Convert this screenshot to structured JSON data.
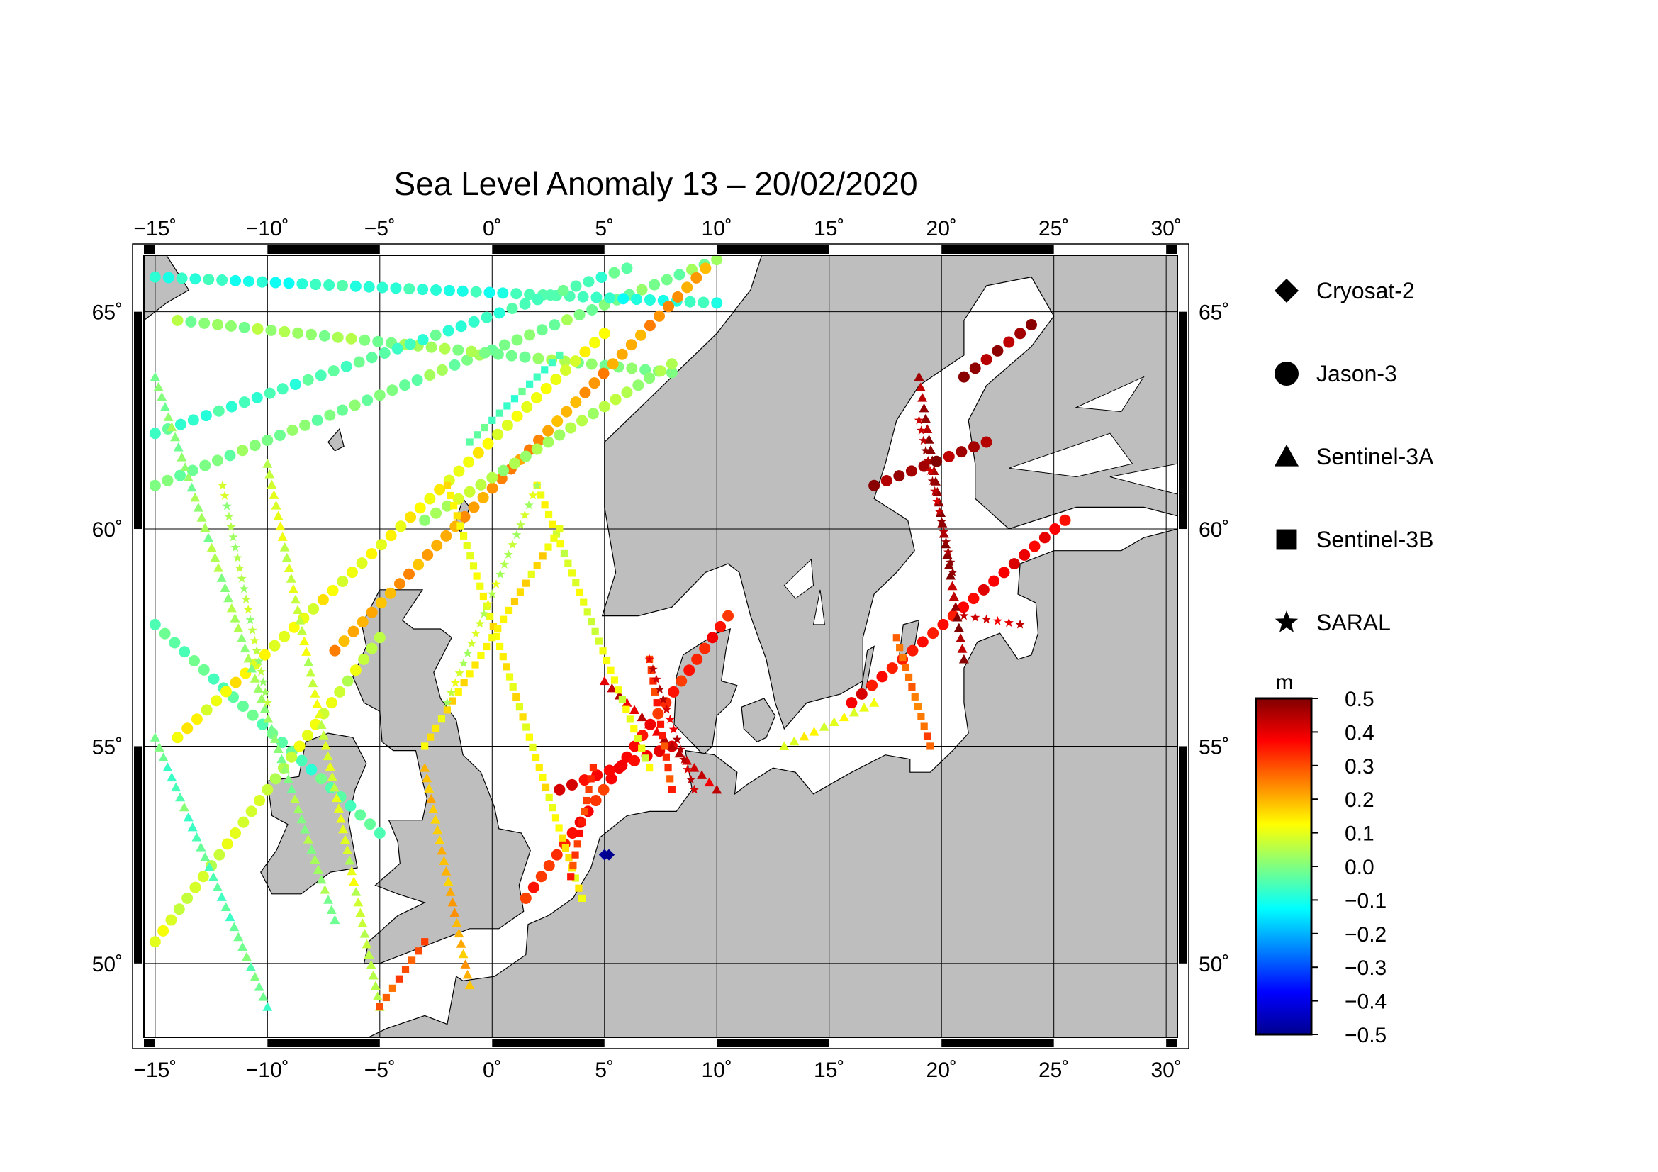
{
  "title": "Sea Level Anomaly 13 – 20/02/2020",
  "map": {
    "lon_range": [
      -15.5,
      30.5
    ],
    "lat_range": [
      48.3,
      66.3
    ],
    "lon_ticks": [
      {
        "value": -15,
        "label": "−15˚"
      },
      {
        "value": -10,
        "label": "−10˚"
      },
      {
        "value": -5,
        "label": "−5˚"
      },
      {
        "value": 0,
        "label": "0˚"
      },
      {
        "value": 5,
        "label": "5˚"
      },
      {
        "value": 10,
        "label": "10˚"
      },
      {
        "value": 15,
        "label": "15˚"
      },
      {
        "value": 20,
        "label": "20˚"
      },
      {
        "value": 25,
        "label": "25˚"
      },
      {
        "value": 30,
        "label": "30˚"
      }
    ],
    "lat_ticks": [
      {
        "value": 50,
        "label": "50˚"
      },
      {
        "value": 55,
        "label": "55˚"
      },
      {
        "value": 60,
        "label": "60˚"
      },
      {
        "value": 65,
        "label": "65˚"
      }
    ],
    "grid": true,
    "land_color": "#bebebe",
    "sea_color": "#ffffff"
  },
  "legend": {
    "items": [
      {
        "label": "Cryosat-2",
        "symbol": "diamond"
      },
      {
        "label": "Jason-3",
        "symbol": "circle"
      },
      {
        "label": "Sentinel-3A",
        "symbol": "triangle"
      },
      {
        "label": "Sentinel-3B",
        "symbol": "square"
      },
      {
        "label": "SARAL",
        "symbol": "star"
      }
    ]
  },
  "colorbar": {
    "unit": "m",
    "min": -0.5,
    "max": 0.5,
    "ticks": [
      "0.5",
      "0.4",
      "0.3",
      "0.2",
      "0.1",
      "0.0",
      "−0.1",
      "−0.2",
      "−0.3",
      "−0.4",
      "−0.5"
    ],
    "colormap": [
      "#00008f",
      "#0000ff",
      "#0080ff",
      "#00ffff",
      "#80ff80",
      "#ffff00",
      "#ff8000",
      "#ff0000",
      "#800000"
    ]
  },
  "tracks": [
    {
      "satellite": "Jason-3",
      "from": [
        -15,
        61.0
      ],
      "to": [
        10,
        66.2
      ],
      "anomaly": 0.0
    },
    {
      "satellite": "Jason-3",
      "from": [
        -15,
        65.8
      ],
      "to": [
        10,
        65.2
      ],
      "anomaly": -0.08
    },
    {
      "satellite": "Jason-3",
      "from": [
        -14,
        64.8
      ],
      "to": [
        8,
        63.6
      ],
      "anomaly": 0.02
    },
    {
      "satellite": "Jason-3",
      "from": [
        -15,
        62.2
      ],
      "to": [
        6,
        66.0
      ],
      "anomaly": -0.05
    },
    {
      "satellite": "Jason-3",
      "from": [
        -15,
        57.8
      ],
      "to": [
        -5,
        53.0
      ],
      "anomaly": -0.05
    },
    {
      "satellite": "Jason-3",
      "from": [
        -14,
        55.2
      ],
      "to": [
        5,
        64.5
      ],
      "anomaly": 0.12
    },
    {
      "satellite": "Jason-3",
      "from": [
        -7,
        57.2
      ],
      "to": [
        9.5,
        66.0
      ],
      "anomaly": 0.22
    },
    {
      "satellite": "Jason-3",
      "from": [
        -15,
        50.5
      ],
      "to": [
        -5,
        57.5
      ],
      "anomaly": 0.08
    },
    {
      "satellite": "Jason-3",
      "from": [
        -3,
        60.2
      ],
      "to": [
        8,
        63.8
      ],
      "anomaly": 0.05
    },
    {
      "satellite": "Jason-3",
      "from": [
        1.5,
        51.5
      ],
      "to": [
        10.5,
        58.0
      ],
      "anomaly": 0.35
    },
    {
      "satellite": "Jason-3",
      "from": [
        3,
        54.0
      ],
      "to": [
        8,
        55.0
      ],
      "anomaly": 0.4
    },
    {
      "satellite": "Jason-3",
      "from": [
        16,
        56.0
      ],
      "to": [
        25.5,
        60.2
      ],
      "anomaly": 0.38
    },
    {
      "satellite": "Jason-3",
      "from": [
        17,
        61.0
      ],
      "to": [
        22,
        62.0
      ],
      "anomaly": 0.47
    },
    {
      "satellite": "Jason-3",
      "from": [
        21,
        63.5
      ],
      "to": [
        24,
        64.7
      ],
      "anomaly": 0.47
    },
    {
      "satellite": "Sentinel-3A",
      "from": [
        -15,
        63.5
      ],
      "to": [
        -7,
        51.0
      ],
      "anomaly": 0.02
    },
    {
      "satellite": "Sentinel-3A",
      "from": [
        -15,
        55.2
      ],
      "to": [
        -10,
        49.0
      ],
      "anomaly": -0.03
    },
    {
      "satellite": "Sentinel-3A",
      "from": [
        -10,
        61.5
      ],
      "to": [
        -5,
        49.0
      ],
      "anomaly": 0.08
    },
    {
      "satellite": "Sentinel-3A",
      "from": [
        -3,
        54.5
      ],
      "to": [
        -1,
        49.5
      ],
      "anomaly": 0.2
    },
    {
      "satellite": "Sentinel-3A",
      "from": [
        19,
        63.5
      ],
      "to": [
        21,
        57.0
      ],
      "anomaly": 0.47
    },
    {
      "satellite": "Sentinel-3A",
      "from": [
        5,
        56.5
      ],
      "to": [
        10,
        54.0
      ],
      "anomaly": 0.42
    },
    {
      "satellite": "Sentinel-3A",
      "from": [
        13,
        55.0
      ],
      "to": [
        17,
        56.0
      ],
      "anomaly": 0.12
    },
    {
      "satellite": "Sentinel-3B",
      "from": [
        -2,
        61.0
      ],
      "to": [
        4,
        51.5
      ],
      "anomaly": 0.13
    },
    {
      "satellite": "Sentinel-3B",
      "from": [
        2,
        61.0
      ],
      "to": [
        7,
        54.5
      ],
      "anomaly": 0.1
    },
    {
      "satellite": "Sentinel-3B",
      "from": [
        -3,
        55.0
      ],
      "to": [
        3,
        60.0
      ],
      "anomaly": 0.14
    },
    {
      "satellite": "Sentinel-3B",
      "from": [
        3.5,
        52.0
      ],
      "to": [
        4.5,
        54.5
      ],
      "anomaly": 0.33
    },
    {
      "satellite": "Sentinel-3B",
      "from": [
        -5,
        49.0
      ],
      "to": [
        -3,
        50.5
      ],
      "anomaly": 0.3
    },
    {
      "satellite": "Sentinel-3B",
      "from": [
        18,
        57.5
      ],
      "to": [
        19.5,
        55.0
      ],
      "anomaly": 0.28
    },
    {
      "satellite": "Sentinel-3B",
      "from": [
        7,
        57.0
      ],
      "to": [
        8,
        54.0
      ],
      "anomaly": 0.32
    },
    {
      "satellite": "Sentinel-3B",
      "from": [
        -1,
        62.0
      ],
      "to": [
        3,
        64.0
      ],
      "anomaly": -0.05
    },
    {
      "satellite": "SARAL",
      "from": [
        -12,
        61.0
      ],
      "to": [
        -10,
        56.0
      ],
      "anomaly": 0.05
    },
    {
      "satellite": "SARAL",
      "from": [
        7,
        57.0
      ],
      "to": [
        9,
        54.0
      ],
      "anomaly": 0.42
    },
    {
      "satellite": "SARAL",
      "from": [
        19,
        62.5
      ],
      "to": [
        20.5,
        59.0
      ],
      "anomaly": 0.45
    },
    {
      "satellite": "SARAL",
      "from": [
        21,
        58.0
      ],
      "to": [
        23.5,
        57.8
      ],
      "anomaly": 0.4
    },
    {
      "satellite": "SARAL",
      "from": [
        -2,
        56.0
      ],
      "to": [
        2,
        61.0
      ],
      "anomaly": 0.07
    },
    {
      "satellite": "Cryosat-2",
      "from": [
        5,
        52.5
      ],
      "to": [
        5.2,
        52.5
      ],
      "anomaly": -0.5
    }
  ]
}
